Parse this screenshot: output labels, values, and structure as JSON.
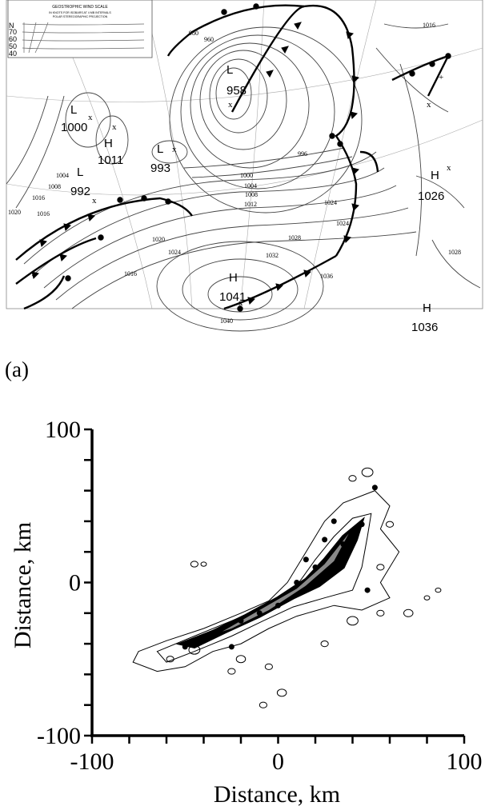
{
  "panel_label": "(a)",
  "map": {
    "wind_scale": {
      "title": "GEOSTROPHIC WIND SCALE",
      "line2": "IN KNOTS FOR ISOBARS AT 4 MB INTERVALS",
      "line3": "POLAR STEREOGRAPHIC PROJECTION",
      "latitudes": [
        "N",
        "70",
        "60",
        "50",
        "40"
      ]
    },
    "pressure_centers": [
      {
        "type": "L",
        "value": "958"
      },
      {
        "type": "L",
        "value": "1000"
      },
      {
        "type": "H",
        "value": "1011"
      },
      {
        "type": "L",
        "value": "993"
      },
      {
        "type": "L",
        "value": "992"
      },
      {
        "type": "H",
        "value": "1026"
      },
      {
        "type": "H",
        "value": "1041"
      },
      {
        "type": "H",
        "value": "1036"
      }
    ],
    "isobar_labels": [
      "1000",
      "1004",
      "1008",
      "1012",
      "1016",
      "1020",
      "1024",
      "1028",
      "1032",
      "1016",
      "1040",
      "996",
      "1036",
      "1016",
      "1028",
      "1024",
      "1020",
      "1016",
      "1008",
      "1004",
      "980",
      "1024",
      "960"
    ]
  },
  "chart_data": {
    "type": "contour",
    "xlabel": "Distance, km",
    "ylabel": "Distance, km",
    "xlim": [
      -100,
      100
    ],
    "ylim": [
      -100,
      100
    ],
    "x_ticks": [
      "-100",
      "0",
      "100"
    ],
    "y_ticks": [
      "100",
      "0",
      "-100"
    ],
    "grid": false
  }
}
